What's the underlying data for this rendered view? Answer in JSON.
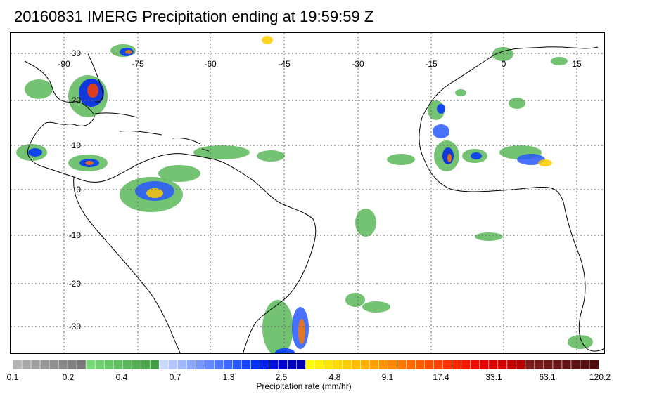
{
  "title": "20160831 IMERG Precipitation ending at 19:59:59 Z",
  "map": {
    "lon_labels": [
      "-90",
      "-75",
      "-60",
      "-45",
      "-30",
      "-15",
      "0",
      "15"
    ],
    "lat_labels": [
      "30",
      "20",
      "10",
      "0",
      "-10",
      "-20",
      "-30"
    ]
  },
  "colorbar": {
    "caption": "Precipitation rate (mm/hr)",
    "tick_labels": [
      "0.1",
      "0.2",
      "0.4",
      "0.7",
      "1.3",
      "2.5",
      "4.8",
      "9.1",
      "17.4",
      "33.1",
      "63.1",
      "120.2"
    ],
    "colors": [
      "#b4b4b4",
      "#a8a8a8",
      "#a0a0a0",
      "#989898",
      "#909090",
      "#888888",
      "#808080",
      "#787878",
      "#78d878",
      "#70d070",
      "#68c868",
      "#60c060",
      "#5ab85a",
      "#52b052",
      "#4aa84a",
      "#429e42",
      "#c8d8ff",
      "#b4c8ff",
      "#a0b8ff",
      "#8ca8ff",
      "#7898ff",
      "#6488ff",
      "#5078ff",
      "#3c68ff",
      "#2858ff",
      "#1444ff",
      "#0030ff",
      "#0020f0",
      "#0010e0",
      "#0000d0",
      "#0000c0",
      "#0000b0",
      "#ffff00",
      "#fff200",
      "#ffe600",
      "#ffda00",
      "#ffcc00",
      "#ffbe00",
      "#ffb000",
      "#ffa200",
      "#ff9400",
      "#ff8600",
      "#ff7800",
      "#ff6a00",
      "#ff5c00",
      "#ff4e00",
      "#ff4000",
      "#ff3200",
      "#ff2400",
      "#f81800",
      "#f00c00",
      "#e80000",
      "#dc0000",
      "#d00000",
      "#c40000",
      "#b80000",
      "#7a1a1a",
      "#741818",
      "#6e1616",
      "#681414",
      "#621212",
      "#5c1010",
      "#560e0e",
      "#500c0c"
    ]
  }
}
